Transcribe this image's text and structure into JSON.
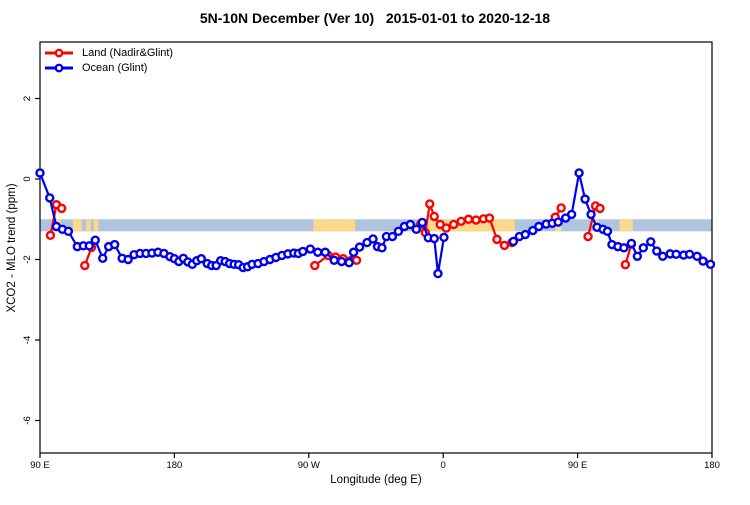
{
  "title": "5N-10N December (Ver 10)   2015-01-01 to 2020-12-18",
  "legend": {
    "items": [
      {
        "label": "Land (Nadir&Glint)",
        "color": "#ff0000"
      },
      {
        "label": "Ocean (Glint)",
        "color": "#0000ee"
      }
    ]
  },
  "chart_data": {
    "type": "line",
    "title": "5N-10N December (Ver 10)   2015-01-01 to 2020-12-18",
    "xlabel": "Longitude (deg E)",
    "ylabel": "XCO2 - MLO trend (ppm)",
    "x_axis": {
      "span_deg": 450,
      "tick_positions_deg": [
        0,
        90,
        180,
        270,
        360,
        450
      ],
      "tick_labels": [
        "90 E",
        "180",
        "90 W",
        "0",
        "90 E",
        "180"
      ],
      "note_deg0_is": "90E wrapping east to 180 again"
    },
    "y_axis": {
      "ticks": [
        2,
        0,
        -2,
        -4,
        -6
      ],
      "range_approx": [
        -6.9,
        3.4
      ]
    },
    "grid": false,
    "legend_position": "top-left",
    "reference_map_band": {
      "value_from": -1.0,
      "value_to": -1.3,
      "ocean_color": "#b0c4de",
      "land_color": "#fad98c",
      "land_segments_deg": [
        [
          10,
          14
        ],
        [
          22,
          28
        ],
        [
          31,
          34
        ],
        [
          36,
          39
        ],
        [
          183,
          211
        ],
        [
          259,
          318
        ],
        [
          345,
          349
        ],
        [
          370,
          374
        ],
        [
          388,
          397
        ]
      ]
    },
    "series": [
      {
        "name": "Land (Nadir&Glint)",
        "color": "#ff0000",
        "segments": [
          [
            [
              7,
              -1.4
            ],
            [
              11,
              -0.64
            ],
            [
              14.5,
              -0.73
            ]
          ],
          [
            [
              30,
              -2.15
            ],
            [
              34.5,
              -1.7
            ]
          ],
          [
            [
              184,
              -2.15
            ],
            [
              193,
              -1.9
            ],
            [
              198,
              -1.94
            ],
            [
              203,
              -1.98
            ],
            [
              208,
              -2.03
            ],
            [
              212,
              -2.02
            ]
          ],
          [
            [
              255,
              -1.12
            ],
            [
              258,
              -1.33
            ],
            [
              261,
              -0.62
            ],
            [
              264,
              -0.93
            ],
            [
              268,
              -1.13
            ],
            [
              272,
              -1.22
            ],
            [
              277,
              -1.13
            ],
            [
              282,
              -1.05
            ],
            [
              287,
              -1.0
            ],
            [
              292,
              -1.02
            ],
            [
              297,
              -0.99
            ],
            [
              301,
              -0.97
            ],
            [
              306,
              -1.5
            ],
            [
              311,
              -1.65
            ],
            [
              316,
              -1.58
            ]
          ],
          [
            [
              345,
              -0.95
            ],
            [
              349,
              -0.72
            ]
          ],
          [
            [
              367,
              -1.43
            ],
            [
              372,
              -0.67
            ],
            [
              375,
              -0.73
            ]
          ],
          [
            [
              392,
              -2.13
            ],
            [
              396,
              -1.62
            ]
          ]
        ]
      },
      {
        "name": "Ocean (Glint)",
        "color": "#0000ee",
        "segments": [
          [
            [
              0,
              0.15
            ],
            [
              6.5,
              -0.47
            ],
            [
              11,
              -1.18
            ],
            [
              15,
              -1.25
            ],
            [
              19,
              -1.3
            ],
            [
              25,
              -1.68
            ],
            [
              29,
              -1.66
            ],
            [
              33,
              -1.66
            ],
            [
              37,
              -1.52
            ],
            [
              42,
              -1.97
            ],
            [
              46,
              -1.68
            ],
            [
              50,
              -1.63
            ],
            [
              55,
              -1.97
            ],
            [
              59,
              -2.0
            ],
            [
              63,
              -1.88
            ],
            [
              67,
              -1.85
            ],
            [
              71,
              -1.85
            ],
            [
              75,
              -1.84
            ],
            [
              79,
              -1.82
            ],
            [
              83,
              -1.85
            ],
            [
              87,
              -1.93
            ],
            [
              90,
              -1.98
            ],
            [
              93,
              -2.05
            ],
            [
              96,
              -1.97
            ],
            [
              99,
              -2.06
            ],
            [
              102,
              -2.12
            ],
            [
              105,
              -2.03
            ],
            [
              108,
              -1.98
            ],
            [
              112,
              -2.1
            ],
            [
              115,
              -2.15
            ],
            [
              118,
              -2.15
            ],
            [
              121,
              -2.03
            ],
            [
              124,
              -2.05
            ],
            [
              127,
              -2.1
            ],
            [
              130,
              -2.12
            ],
            [
              133,
              -2.13
            ],
            [
              136,
              -2.2
            ],
            [
              139,
              -2.18
            ],
            [
              142,
              -2.12
            ],
            [
              146,
              -2.1
            ],
            [
              150,
              -2.05
            ],
            [
              154,
              -2.0
            ],
            [
              158,
              -1.95
            ],
            [
              162,
              -1.9
            ],
            [
              166,
              -1.86
            ],
            [
              170,
              -1.84
            ],
            [
              173,
              -1.85
            ],
            [
              176,
              -1.8
            ],
            [
              181,
              -1.74
            ],
            [
              186,
              -1.82
            ],
            [
              191,
              -1.82
            ],
            [
              197,
              -2.02
            ],
            [
              202,
              -2.05
            ],
            [
              207,
              -2.08
            ],
            [
              210,
              -1.82
            ],
            [
              214,
              -1.69
            ],
            [
              219,
              -1.58
            ],
            [
              223,
              -1.49
            ],
            [
              226,
              -1.68
            ],
            [
              229,
              -1.71
            ],
            [
              232,
              -1.43
            ],
            [
              236,
              -1.43
            ],
            [
              240,
              -1.3
            ],
            [
              244,
              -1.18
            ],
            [
              248,
              -1.13
            ],
            [
              252,
              -1.25
            ],
            [
              256,
              -1.08
            ],
            [
              260,
              -1.46
            ],
            [
              264,
              -1.48
            ],
            [
              266.5,
              -2.35
            ],
            [
              270.5,
              -1.45
            ]
          ],
          [
            [
              317,
              -1.55
            ],
            [
              321,
              -1.43
            ],
            [
              325,
              -1.38
            ],
            [
              330,
              -1.28
            ],
            [
              334,
              -1.18
            ],
            [
              339,
              -1.12
            ],
            [
              343,
              -1.1
            ],
            [
              347,
              -1.07
            ],
            [
              352,
              -0.97
            ],
            [
              356,
              -0.88
            ],
            [
              361,
              0.15
            ],
            [
              365,
              -0.5
            ],
            [
              369,
              -0.88
            ],
            [
              373,
              -1.2
            ],
            [
              377,
              -1.25
            ],
            [
              380,
              -1.3
            ],
            [
              383,
              -1.63
            ],
            [
              387,
              -1.68
            ],
            [
              391,
              -1.71
            ],
            [
              396,
              -1.6
            ],
            [
              400,
              -1.92
            ],
            [
              404,
              -1.71
            ],
            [
              409,
              -1.56
            ],
            [
              413,
              -1.79
            ],
            [
              417,
              -1.92
            ],
            [
              422,
              -1.86
            ],
            [
              426,
              -1.87
            ],
            [
              431,
              -1.89
            ],
            [
              435,
              -1.87
            ],
            [
              440,
              -1.92
            ],
            [
              444,
              -2.04
            ],
            [
              449,
              -2.12
            ]
          ]
        ]
      }
    ]
  }
}
